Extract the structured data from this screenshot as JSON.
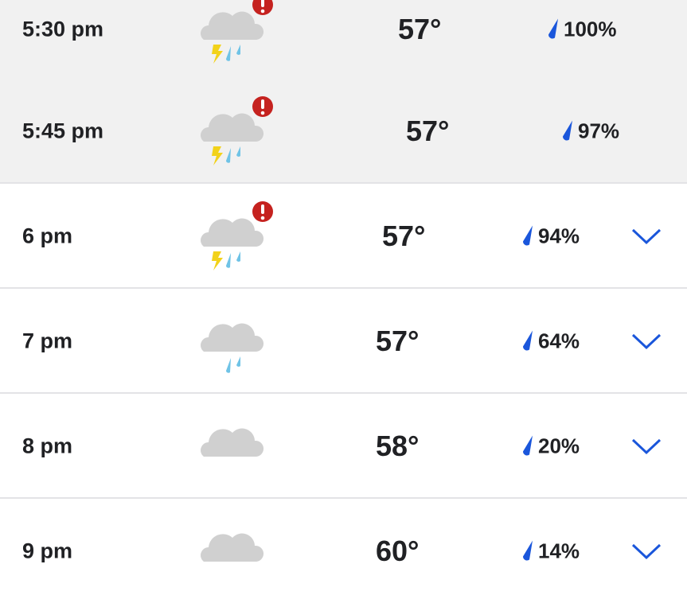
{
  "colors": {
    "drop": "#1a56db",
    "alert": "#c5221f",
    "bolt": "#f2d21a",
    "rain": "#6fc3e6",
    "cloud": "#d0d0d0",
    "chevron": "#1a56db"
  },
  "rows": [
    {
      "time": "5:30 pm",
      "temp": "57°",
      "precip": "100%",
      "icon": "thunderstorm-icon",
      "alert": true,
      "expandable": false
    },
    {
      "time": "5:45 pm",
      "temp": "57°",
      "precip": "97%",
      "icon": "thunderstorm-icon",
      "alert": true,
      "expandable": false
    },
    {
      "time": "6 pm",
      "temp": "57°",
      "precip": "94%",
      "icon": "thunderstorm-icon",
      "alert": true,
      "expandable": true
    },
    {
      "time": "7 pm",
      "temp": "57°",
      "precip": "64%",
      "icon": "rain-icon",
      "alert": false,
      "expandable": true
    },
    {
      "time": "8 pm",
      "temp": "58°",
      "precip": "20%",
      "icon": "cloud-icon",
      "alert": false,
      "expandable": true
    },
    {
      "time": "9 pm",
      "temp": "60°",
      "precip": "14%",
      "icon": "cloud-icon",
      "alert": false,
      "expandable": true
    }
  ]
}
